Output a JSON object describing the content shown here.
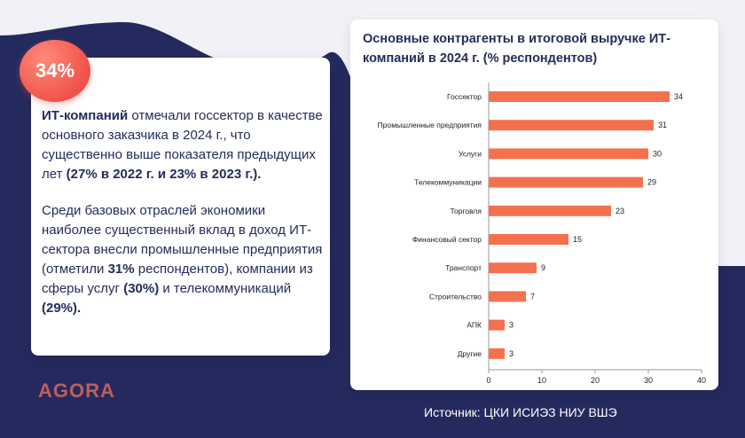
{
  "badge": {
    "value": "34%"
  },
  "card": {
    "p1": {
      "bold_lead": "ИТ-компаний",
      "text": " отмечали госсектор в качестве основного заказчика в 2024 г., что существенно выше показателя предыдущих лет ",
      "bold_tail": "(27% в 2022 г. и 23% в 2023 г.)."
    },
    "p2": {
      "text1": "Среди базовых отраслей экономики наиболее существенный вклад в доход ИТ-сектора внесли промышленные предприятия (отметили ",
      "bold1": "31%",
      "text2": " респондентов), компании из сферы услуг ",
      "bold2": "(30%)",
      "text3": " и телекоммуникаций ",
      "bold3": "(29%)."
    }
  },
  "logo": {
    "text": "AGORA"
  },
  "source": {
    "text": "Источник: ЦКИ ИСИЭЗ НИУ ВШЭ"
  },
  "colors": {
    "bar": "#f4714f",
    "navy": "#252a5e",
    "accent": "#f0524a"
  },
  "chart_data": {
    "type": "bar",
    "orientation": "horizontal",
    "title": "Основные контрагенты в итоговой выручке ИТ-компаний в 2024 г.  (% респондентов)",
    "categories": [
      "Госсектор",
      "Промышленные предприятия",
      "Услуги",
      "Телекоммуникации",
      "Торговля",
      "Финансовый сектор",
      "Транспорт",
      "Строительство",
      "АПК",
      "Другие"
    ],
    "values": [
      34,
      31,
      30,
      29,
      23,
      15,
      9,
      7,
      3,
      3
    ],
    "xlim": [
      0,
      40
    ],
    "xticks": [
      0,
      10,
      20,
      30,
      40
    ],
    "grid": false,
    "data_labels": true
  }
}
